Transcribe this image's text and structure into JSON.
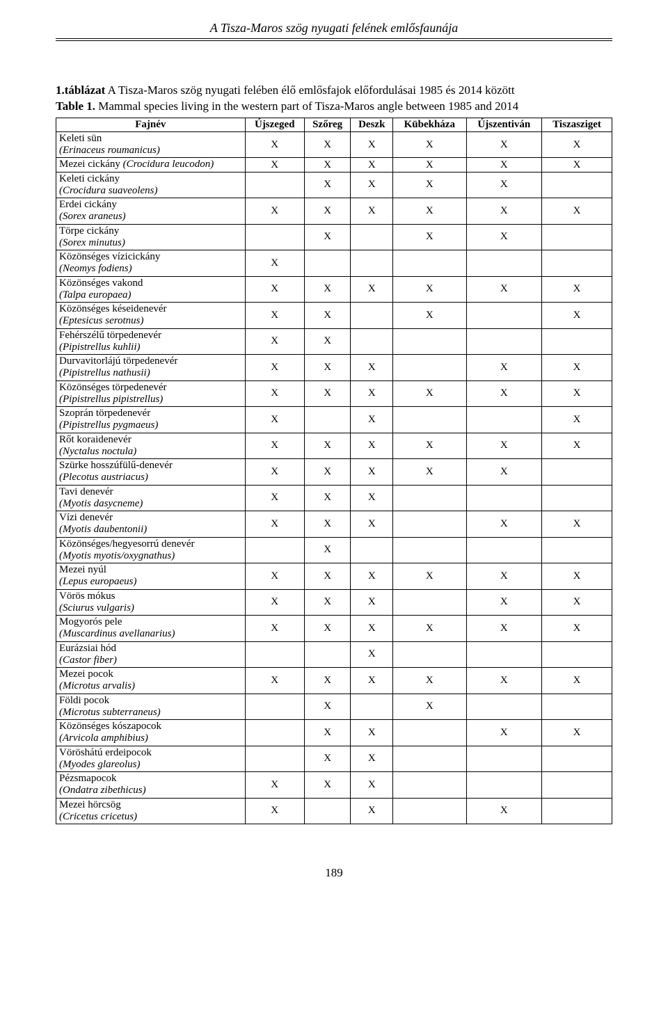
{
  "running_head": "A Tisza-Maros szög nyugati felének emlősfaunája",
  "caption_line1_bold": "1.táblázat",
  "caption_line1_rest": " A Tisza-Maros szög nyugati felében élő emlősfajok előfordulásai 1985 és 2014 között",
  "caption_line2_bold": "Table 1.",
  "caption_line2_rest": " Mammal species living in the western part of Tisza-Maros angle between 1985 and 2014",
  "page_number": "189",
  "table": {
    "columns": [
      "Fajnév",
      "Újszeged",
      "Szőreg",
      "Deszk",
      "Kübekháza",
      "Újszentiván",
      "Tiszasziget"
    ],
    "mark_glyph": "X",
    "rows": [
      {
        "common": "Keleti sün",
        "latin": "(Erinaceus roumanicus)",
        "marks": [
          1,
          1,
          1,
          1,
          1,
          1
        ]
      },
      {
        "common": "Mezei cickány ",
        "latin_inline": "(Crocidura leucodon)",
        "marks": [
          1,
          1,
          1,
          1,
          1,
          1
        ]
      },
      {
        "common": "Keleti cickány",
        "latin": "(Crocidura suaveolens)",
        "marks": [
          0,
          1,
          1,
          1,
          1,
          0
        ]
      },
      {
        "common": "Erdei cickány",
        "latin": "(Sorex araneus)",
        "marks": [
          1,
          1,
          1,
          1,
          1,
          1
        ]
      },
      {
        "common": "Törpe cickány",
        "latin": "(Sorex minutus)",
        "marks": [
          0,
          1,
          0,
          1,
          1,
          0
        ]
      },
      {
        "common": "Közönséges vízicickány",
        "latin": "(Neomys fodiens)",
        "marks": [
          1,
          0,
          0,
          0,
          0,
          0
        ]
      },
      {
        "common": "Közönséges vakond",
        "latin": "(Talpa europaea)",
        "marks": [
          1,
          1,
          1,
          1,
          1,
          1
        ]
      },
      {
        "common": "Közönséges késeidenevér",
        "latin": "(Eptesicus serotnus)",
        "marks": [
          1,
          1,
          0,
          1,
          0,
          1
        ]
      },
      {
        "common": "Fehérszélű törpedenevér",
        "latin": "(Pipistrellus kuhlii)",
        "marks": [
          1,
          1,
          0,
          0,
          0,
          0
        ]
      },
      {
        "common": "Durvavitorlájú törpedenevér",
        "latin": "(Pipistrellus nathusii)",
        "marks": [
          1,
          1,
          1,
          0,
          1,
          1
        ]
      },
      {
        "common": "Közönséges törpedenevér",
        "latin": "(Pipistrellus pipistrellus)",
        "marks": [
          1,
          1,
          1,
          1,
          1,
          1
        ]
      },
      {
        "common": "Szoprán törpedenevér",
        "latin": "(Pipistrellus pygmaeus)",
        "marks": [
          1,
          0,
          1,
          0,
          0,
          1
        ]
      },
      {
        "common": "Rőt koraidenevér",
        "latin": "(Nyctalus noctula)",
        "marks": [
          1,
          1,
          1,
          1,
          1,
          1
        ]
      },
      {
        "common": "Szürke hosszúfülű-denevér",
        "latin": "(Plecotus austriacus)",
        "marks": [
          1,
          1,
          1,
          1,
          1,
          0
        ]
      },
      {
        "common": "Tavi denevér",
        "latin": "(Myotis dasycneme)",
        "marks": [
          1,
          1,
          1,
          0,
          0,
          0
        ]
      },
      {
        "common": "Vízi denevér",
        "latin": "(Myotis daubentonii)",
        "marks": [
          1,
          1,
          1,
          0,
          1,
          1
        ]
      },
      {
        "common": "Közönséges/hegyesorrú denevér",
        "latin": "(Myotis myotis/oxygnathus)",
        "marks": [
          0,
          1,
          0,
          0,
          0,
          0
        ]
      },
      {
        "common": "Mezei nyúl",
        "latin": "(Lepus europaeus)",
        "marks": [
          1,
          1,
          1,
          1,
          1,
          1
        ]
      },
      {
        "common": "Vörös mókus",
        "latin": "(Sciurus vulgaris)",
        "marks": [
          1,
          1,
          1,
          0,
          1,
          1
        ]
      },
      {
        "common": "Mogyorós pele",
        "latin": "(Muscardinus avellanarius)",
        "marks": [
          1,
          1,
          1,
          1,
          1,
          1
        ]
      },
      {
        "common": "Eurázsiai hód",
        "latin": "(Castor fiber)",
        "marks": [
          0,
          0,
          1,
          0,
          0,
          0
        ]
      },
      {
        "common": "Mezei pocok",
        "latin": "(Microtus arvalis)",
        "marks": [
          1,
          1,
          1,
          1,
          1,
          1
        ]
      },
      {
        "common": "Földi pocok",
        "latin": "(Microtus subterraneus)",
        "marks": [
          0,
          1,
          0,
          1,
          0,
          0
        ]
      },
      {
        "common": "Közönséges kószapocok",
        "latin": "(Arvicola amphibius)",
        "marks": [
          0,
          1,
          1,
          0,
          1,
          1
        ]
      },
      {
        "common": "Vöröshátú erdeipocok",
        "latin": "(Myodes glareolus)",
        "marks": [
          0,
          1,
          1,
          0,
          0,
          0
        ]
      },
      {
        "common": "Pézsmapocok",
        "latin": "(Ondatra zibethicus)",
        "marks": [
          1,
          1,
          1,
          0,
          0,
          0
        ]
      },
      {
        "common": "Mezei hörcsög",
        "latin": "(Cricetus cricetus)",
        "marks": [
          1,
          0,
          1,
          0,
          1,
          0
        ]
      }
    ]
  }
}
